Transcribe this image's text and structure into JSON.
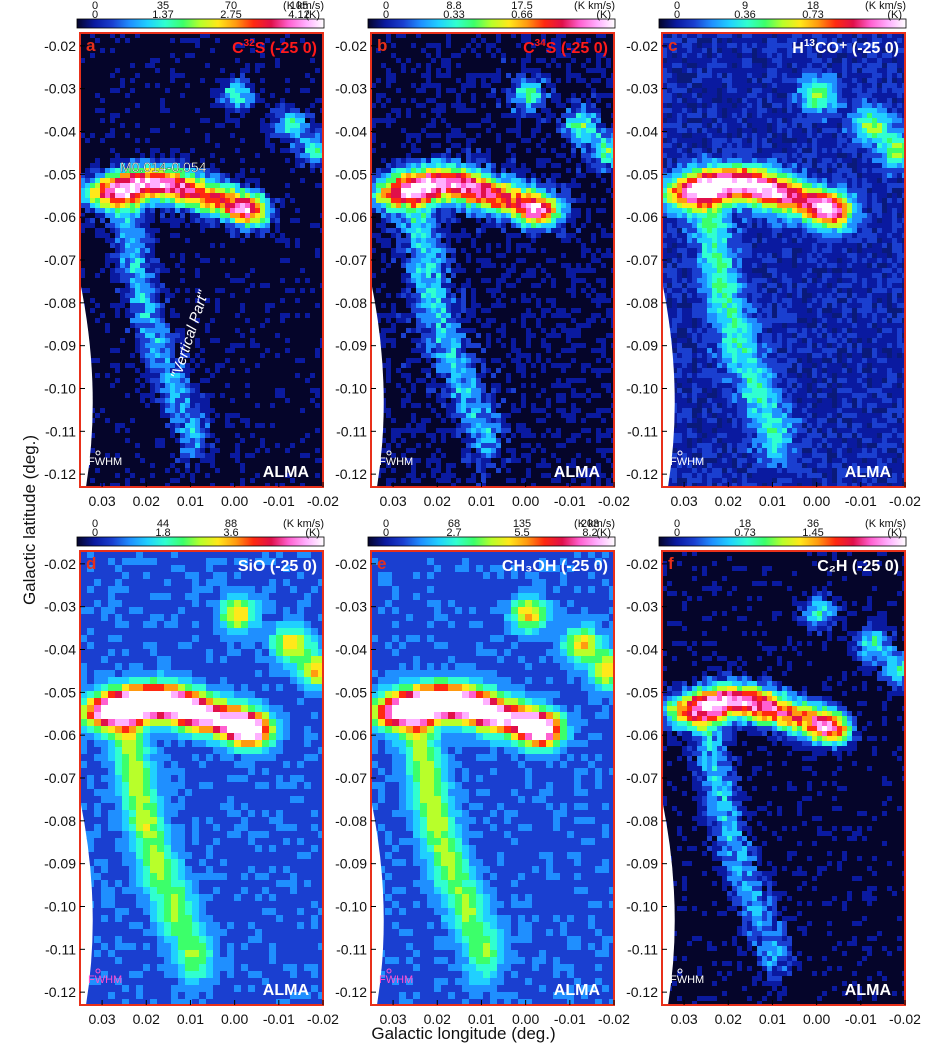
{
  "figure": {
    "xlabel": "Galactic longitude (deg.)",
    "ylabel": "Galactic latitude (deg.)"
  },
  "chart_data": [
    {
      "type": "heatmap",
      "panel": "a",
      "label": "C³²S (-25 0)",
      "label_main": "C",
      "label_sup": "32",
      "label_rest": "S (-25 0)",
      "label_color": "#ff1a1a",
      "colorbar": {
        "unit_top": "(K km/s)",
        "unit_bottom": "(K)",
        "ticks_top": [
          "0",
          "35",
          "70",
          "105"
        ],
        "ticks_bottom": [
          "0",
          "1.37",
          "2.75",
          "4.12"
        ]
      },
      "annotations": [
        "M0.014-0.054",
        "\"Vertical Part\"",
        "FWHM",
        "ALMA"
      ],
      "show_xticks": true,
      "xlim": [
        0.035,
        -0.02
      ],
      "ylim": [
        -0.123,
        -0.017
      ],
      "xticks": [
        "0.03",
        "0.02",
        "0.01",
        "0.00",
        "-0.01",
        "-0.02"
      ],
      "yticks": [
        "-0.02",
        "-0.03",
        "-0.04",
        "-0.05",
        "-0.06",
        "-0.07",
        "-0.08",
        "-0.09",
        "-0.10",
        "-0.11",
        "-0.12"
      ],
      "background": "#05052a",
      "style": "dense"
    },
    {
      "type": "heatmap",
      "panel": "b",
      "label": "C³⁴S (-25 0)",
      "label_main": "C",
      "label_sup": "34",
      "label_rest": "S (-25 0)",
      "label_color": "#ff1a1a",
      "colorbar": {
        "unit_top": "(K km/s)",
        "unit_bottom": "(K)",
        "ticks_top": [
          "0",
          "8.8",
          "17.5"
        ],
        "ticks_bottom": [
          "0",
          "0.33",
          "0.66"
        ]
      },
      "annotations": [
        "FWHM",
        "ALMA"
      ],
      "show_xticks": true,
      "xlim": [
        0.035,
        -0.02
      ],
      "ylim": [
        -0.123,
        -0.017
      ],
      "xticks": [
        "0.03",
        "0.02",
        "0.01",
        "0.00",
        "-0.01",
        "-0.02"
      ],
      "yticks": [
        "-0.02",
        "-0.03",
        "-0.04",
        "-0.05",
        "-0.06",
        "-0.07",
        "-0.08",
        "-0.09",
        "-0.10",
        "-0.11",
        "-0.12"
      ],
      "background": "#05052a",
      "style": "noisy"
    },
    {
      "type": "heatmap",
      "panel": "c",
      "label": "H¹³CO⁺ (-25 0)",
      "label_main": "H",
      "label_sup": "13",
      "label_rest": "CO⁺ (-25 0)",
      "label_color": "#ffffff",
      "colorbar": {
        "unit_top": "(K km/s)",
        "unit_bottom": "(K)",
        "ticks_top": [
          "0",
          "9",
          "18"
        ],
        "ticks_bottom": [
          "0",
          "0.36",
          "0.73"
        ]
      },
      "annotations": [
        "FWHM",
        "ALMA"
      ],
      "show_xticks": true,
      "xlim": [
        0.035,
        -0.02
      ],
      "ylim": [
        -0.123,
        -0.017
      ],
      "xticks": [
        "0.03",
        "0.02",
        "0.01",
        "0.00",
        "-0.01",
        "-0.02"
      ],
      "yticks": [
        "-0.02",
        "-0.03",
        "-0.04",
        "-0.05",
        "-0.06",
        "-0.07",
        "-0.08",
        "-0.09",
        "-0.10",
        "-0.11",
        "-0.12"
      ],
      "background": "#0a1a7a",
      "style": "mid"
    },
    {
      "type": "heatmap",
      "panel": "d",
      "label": "SiO (-25 0)",
      "label_main": "SiO (-25 0)",
      "label_sup": "",
      "label_rest": "",
      "label_color": "#ffffff",
      "colorbar": {
        "unit_top": "(K km/s)",
        "unit_bottom": "(K)",
        "ticks_top": [
          "0",
          "44",
          "88"
        ],
        "ticks_bottom": [
          "0",
          "1.8",
          "3.6"
        ]
      },
      "annotations": [
        "FWHM",
        "ALMA"
      ],
      "show_xticks": true,
      "xlim": [
        0.035,
        -0.02
      ],
      "ylim": [
        -0.123,
        -0.017
      ],
      "xticks": [
        "0.03",
        "0.02",
        "0.01",
        "0.00",
        "-0.01",
        "-0.02"
      ],
      "yticks": [
        "-0.02",
        "-0.03",
        "-0.04",
        "-0.05",
        "-0.06",
        "-0.07",
        "-0.08",
        "-0.09",
        "-0.10",
        "-0.11",
        "-0.12"
      ],
      "background": "#1a3fd0",
      "style": "smooth"
    },
    {
      "type": "heatmap",
      "panel": "e",
      "label": "CH₃OH (-25 0)",
      "label_main": "CH₃OH (-25 0)",
      "label_sup": "",
      "label_rest": "",
      "label_color": "#ffffff",
      "colorbar": {
        "unit_top": "(K km/s)",
        "unit_bottom": "(K)",
        "ticks_top": [
          "0",
          "68",
          "135",
          "203"
        ],
        "ticks_bottom": [
          "0",
          "2.7",
          "5.5",
          "8.2"
        ]
      },
      "annotations": [
        "FWHM",
        "ALMA"
      ],
      "show_xticks": true,
      "xlim": [
        0.035,
        -0.02
      ],
      "ylim": [
        -0.123,
        -0.017
      ],
      "xticks": [
        "0.03",
        "0.02",
        "0.01",
        "0.00",
        "-0.01",
        "-0.02"
      ],
      "yticks": [
        "-0.02",
        "-0.03",
        "-0.04",
        "-0.05",
        "-0.06",
        "-0.07",
        "-0.08",
        "-0.09",
        "-0.10",
        "-0.11",
        "-0.12"
      ],
      "background": "#1a3fd0",
      "style": "smooth"
    },
    {
      "type": "heatmap",
      "panel": "f",
      "label": "C₂H (-25 0)",
      "label_main": "C₂H (-25 0)",
      "label_sup": "",
      "label_rest": "",
      "label_color": "#ffffff",
      "colorbar": {
        "unit_top": "(K km/s)",
        "unit_bottom": "(K)",
        "ticks_top": [
          "0",
          "18",
          "36"
        ],
        "ticks_bottom": [
          "0",
          "0.73",
          "1.45"
        ]
      },
      "annotations": [
        "FWHM",
        "ALMA"
      ],
      "show_xticks": true,
      "xlim": [
        0.035,
        -0.02
      ],
      "ylim": [
        -0.123,
        -0.017
      ],
      "xticks": [
        "0.03",
        "0.02",
        "0.01",
        "0.00",
        "-0.01",
        "-0.02"
      ],
      "yticks": [
        "-0.02",
        "-0.03",
        "-0.04",
        "-0.05",
        "-0.06",
        "-0.07",
        "-0.08",
        "-0.09",
        "-0.10",
        "-0.11",
        "-0.12"
      ],
      "background": "#05052a",
      "style": "dense"
    }
  ]
}
